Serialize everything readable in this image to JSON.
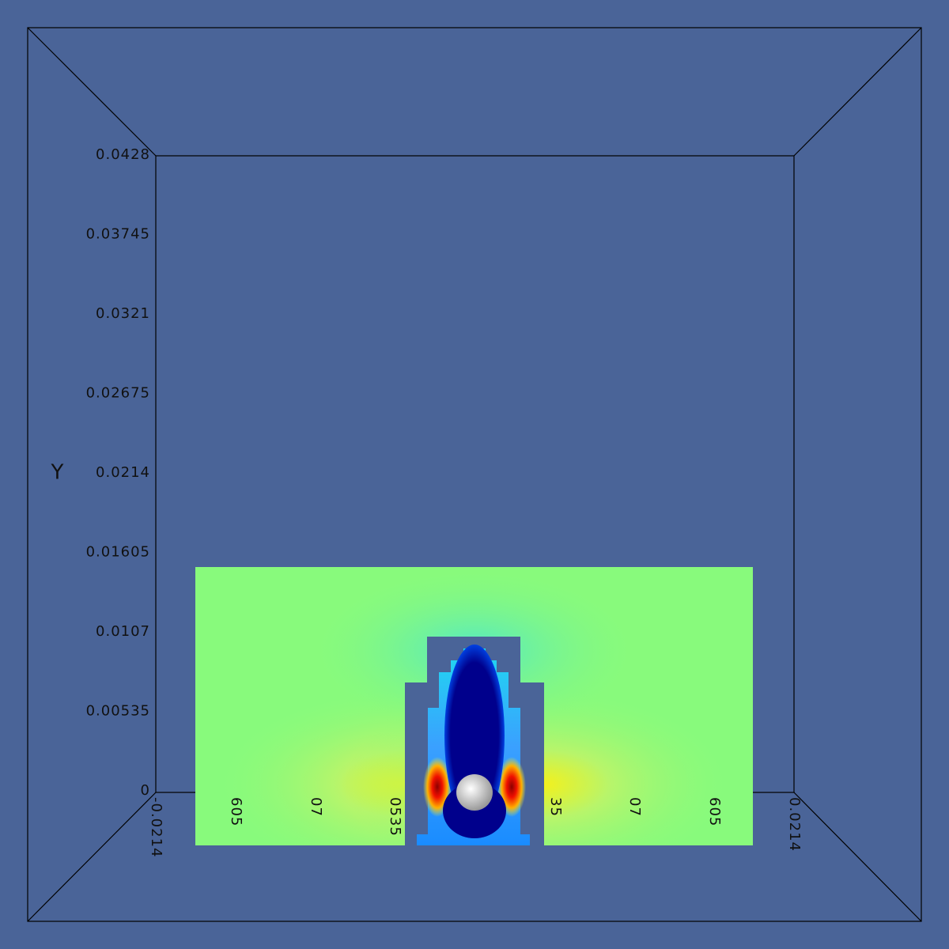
{
  "axes": {
    "y_label": "Y",
    "y_ticks": [
      "0.0428",
      "0.03745",
      "0.0321",
      "0.02675",
      "0.0214",
      "0.01605",
      "0.0107",
      "0.00535",
      "0"
    ],
    "x_ticks": [
      "-0.0214",
      "605",
      "07",
      "0535",
      "35",
      "07",
      "605",
      "0.0214"
    ]
  }
}
